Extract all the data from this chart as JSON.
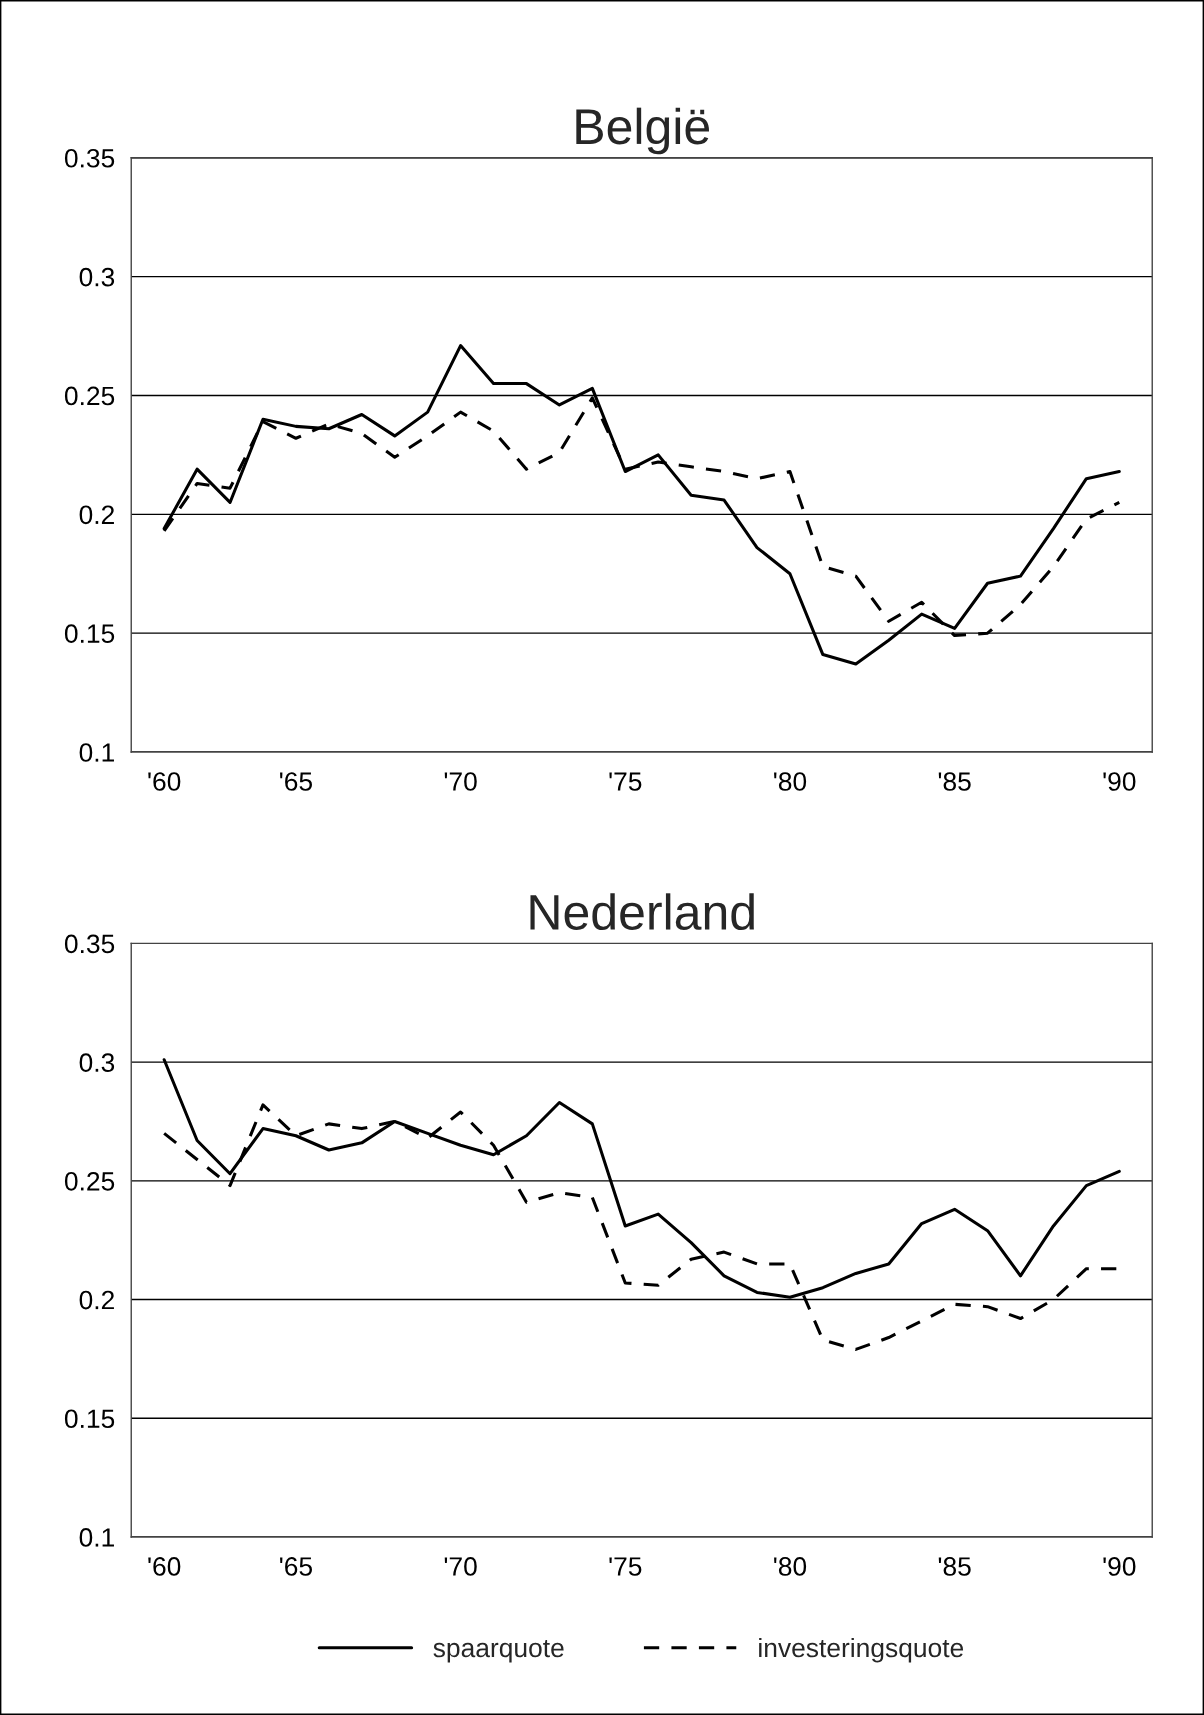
{
  "chart_data": [
    {
      "type": "line",
      "title": "België",
      "categories": [
        "'60",
        null,
        null,
        null,
        "'65",
        null,
        null,
        null,
        null,
        "'70",
        null,
        null,
        null,
        null,
        "'75",
        null,
        null,
        null,
        null,
        "'80",
        null,
        null,
        null,
        null,
        "'85",
        null,
        null,
        null,
        null,
        "'90"
      ],
      "series": [
        {
          "color": "#000000",
          "line_style": "solid",
          "values": [
            0.194,
            0.219,
            0.205,
            0.24,
            0.237,
            0.236,
            0.242,
            0.233,
            0.243,
            0.271,
            0.255,
            0.255,
            0.246,
            0.253,
            0.218,
            0.225,
            0.208,
            0.206,
            0.186,
            0.175,
            0.141,
            0.137,
            0.147,
            0.158,
            0.152,
            0.171,
            0.174,
            0.194,
            0.215,
            0.218
          ]
        },
        {
          "color": "#000000",
          "line_style": "dashed",
          "values": [
            0.193,
            0.213,
            0.211,
            0.239,
            0.232,
            0.238,
            0.234,
            0.224,
            0.233,
            0.243,
            0.235,
            0.219,
            0.226,
            0.249,
            0.219,
            0.222,
            0.22,
            0.218,
            0.215,
            0.218,
            0.178,
            0.174,
            0.155,
            0.163,
            0.149,
            0.15,
            0.162,
            0.178,
            0.198,
            0.205
          ]
        }
      ],
      "ylim": [
        0.1,
        0.35
      ],
      "yticks": [
        0.1,
        0.15,
        0.2,
        0.25,
        0.3,
        0.35
      ],
      "grid": "y",
      "legend": false,
      "marker": "none"
    },
    {
      "type": "line",
      "title": "Nederland",
      "categories": [
        "'60",
        null,
        null,
        null,
        "'65",
        null,
        null,
        null,
        null,
        "'70",
        null,
        null,
        null,
        null,
        "'75",
        null,
        null,
        null,
        null,
        "'80",
        null,
        null,
        null,
        null,
        "'85",
        null,
        null,
        null,
        null,
        "'90"
      ],
      "series": [
        {
          "name": "spaarquote",
          "color": "#000000",
          "line_style": "solid",
          "values": [
            0.301,
            0.267,
            0.253,
            0.272,
            0.269,
            0.263,
            0.266,
            0.275,
            0.27,
            0.265,
            0.261,
            0.269,
            0.283,
            0.274,
            0.231,
            0.236,
            0.224,
            0.21,
            0.203,
            0.201,
            0.205,
            0.211,
            0.215,
            0.232,
            0.238,
            0.229,
            0.21,
            0.231,
            0.248,
            0.254
          ]
        },
        {
          "name": "investeringsquote",
          "color": "#000000",
          "line_style": "dashed",
          "values": [
            0.27,
            0.259,
            0.248,
            0.282,
            0.269,
            0.274,
            0.272,
            0.275,
            0.268,
            0.279,
            0.265,
            0.241,
            0.245,
            0.243,
            0.207,
            0.206,
            0.217,
            0.22,
            0.215,
            0.215,
            0.183,
            0.179,
            0.184,
            0.191,
            0.198,
            0.197,
            0.192,
            0.2,
            0.213,
            0.213
          ]
        }
      ],
      "ylim": [
        0.1,
        0.35
      ],
      "yticks": [
        0.1,
        0.15,
        0.2,
        0.25,
        0.3,
        0.35
      ],
      "grid": "y",
      "legend": "bottom",
      "marker": "none"
    }
  ]
}
